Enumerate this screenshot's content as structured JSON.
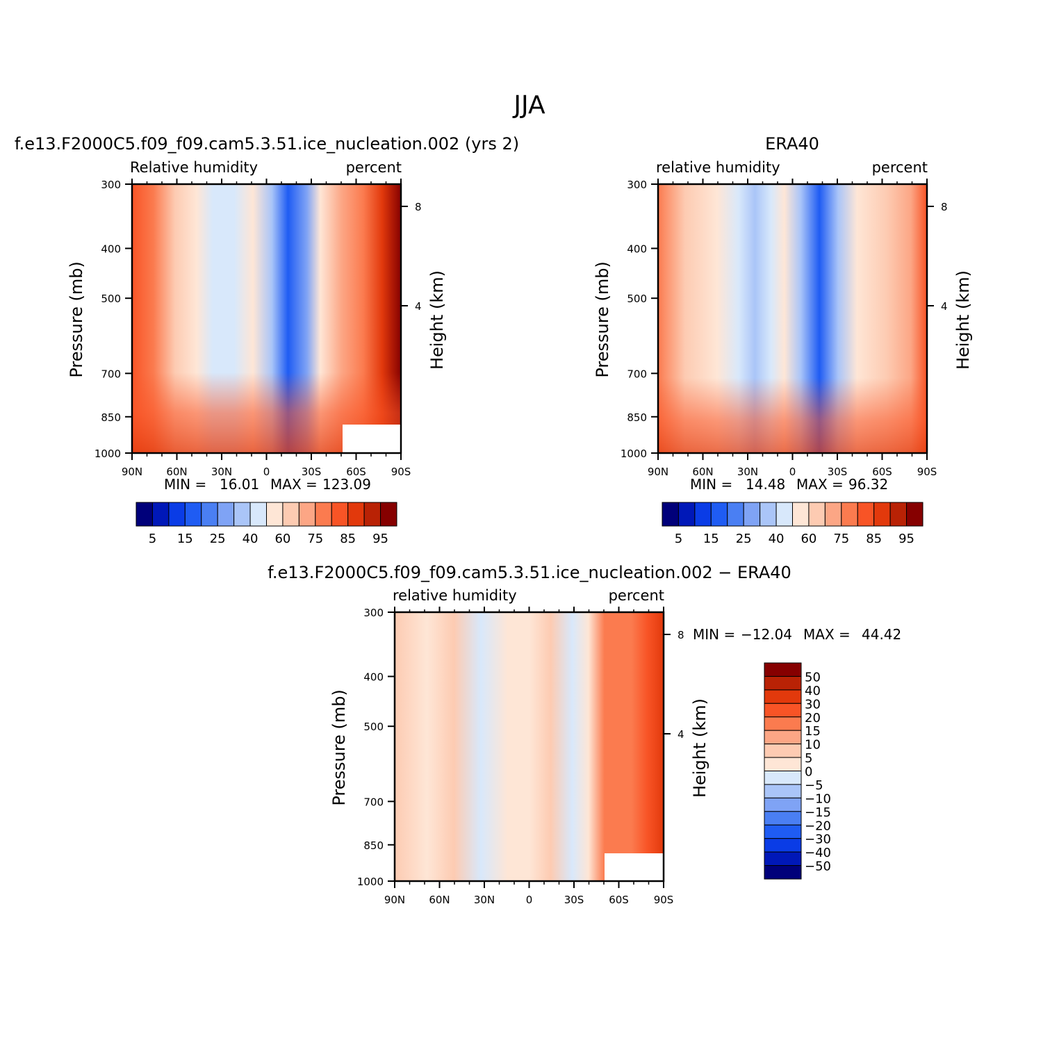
{
  "figure": {
    "title": "JJA"
  },
  "chart_data": [
    {
      "type": "heatmap",
      "title": "f.e13.F2000C5.f09_f09.cam5.3.51.ice_nucleation.002 (yrs 2)",
      "left_label": "Relative humidity",
      "right_label": "percent",
      "ylabel": "Pressure (mb)",
      "y2label": "Height (km)",
      "x_ticks": [
        "90N",
        "60N",
        "30N",
        "0",
        "30S",
        "60S",
        "90S"
      ],
      "y_ticks": [
        "300",
        "400",
        "500",
        "700",
        "850",
        "1000"
      ],
      "y2_ticks": [
        "8",
        "4"
      ],
      "min_label": "MIN =",
      "min_value": "16.01",
      "max_label": "MAX =",
      "max_value": "123.09",
      "colorbar_labels": [
        "5",
        "15",
        "25",
        "40",
        "60",
        "75",
        "85",
        "95"
      ],
      "bands": [
        {
          "x": [
            0,
            6,
            13,
            18,
            22,
            26,
            30,
            34,
            38,
            42,
            46,
            50,
            54,
            58,
            62,
            66,
            70,
            74,
            78,
            82,
            85,
            88,
            91,
            94,
            97,
            100
          ],
          "fill": [
            "#d8e8fb",
            "#b8d0f8",
            "#90b2f5",
            "#5d8bf1",
            "#1f5cf3",
            "#2a63ea",
            "#5d8bf1",
            "#90b2f5",
            "#b8d0f8",
            "#d8e8fb"
          ]
        }
      ]
    },
    {
      "type": "heatmap",
      "title": "ERA40",
      "left_label": "relative humidity",
      "right_label": "percent",
      "ylabel": "Pressure (mb)",
      "y2label": "Height (km)",
      "x_ticks": [
        "90N",
        "60N",
        "30N",
        "0",
        "30S",
        "60S",
        "90S"
      ],
      "y_ticks": [
        "300",
        "400",
        "500",
        "700",
        "850",
        "1000"
      ],
      "y2_ticks": [
        "8",
        "4"
      ],
      "min_label": "MIN =",
      "min_value": "14.48",
      "max_label": "MAX =",
      "max_value": "96.32",
      "colorbar_labels": [
        "5",
        "15",
        "25",
        "40",
        "60",
        "75",
        "85",
        "95"
      ]
    },
    {
      "type": "heatmap",
      "title": "f.e13.F2000C5.f09_f09.cam5.3.51.ice_nucleation.002 − ERA40",
      "left_label": "relative humidity",
      "right_label": "percent",
      "ylabel": "Pressure (mb)",
      "y2label": "Height (km)",
      "x_ticks": [
        "90N",
        "60N",
        "30N",
        "0",
        "30S",
        "60S",
        "90S"
      ],
      "y_ticks": [
        "300",
        "400",
        "500",
        "700",
        "850",
        "1000"
      ],
      "y2_ticks": [
        "8",
        "4"
      ],
      "min_label": "MIN =",
      "min_value": "−12.04",
      "max_label": "MAX =",
      "max_value": "44.42",
      "colorbar_labels": [
        "50",
        "40",
        "30",
        "20",
        "15",
        "10",
        "5",
        "0",
        "−5",
        "−10",
        "−15",
        "−20",
        "−30",
        "−40",
        "−50"
      ]
    }
  ],
  "palette": {
    "abs": [
      "#00007a",
      "#0018b8",
      "#0a3ce6",
      "#1f5cf3",
      "#4a7ff3",
      "#7fa3f5",
      "#aac5f8",
      "#d8e8fb",
      "#fee6d6",
      "#fdcbb2",
      "#fca685",
      "#fb7b4f",
      "#f85426",
      "#e2390c",
      "#b92205",
      "#860000"
    ],
    "diff": [
      "#860000",
      "#b92205",
      "#e2390c",
      "#f85426",
      "#fb7b4f",
      "#fca685",
      "#fdcbb2",
      "#fee6d6",
      "#d8e8fb",
      "#aac5f8",
      "#7fa3f5",
      "#4a7ff3",
      "#1f5cf3",
      "#0a3ce6",
      "#0018b8",
      "#00007a"
    ]
  }
}
